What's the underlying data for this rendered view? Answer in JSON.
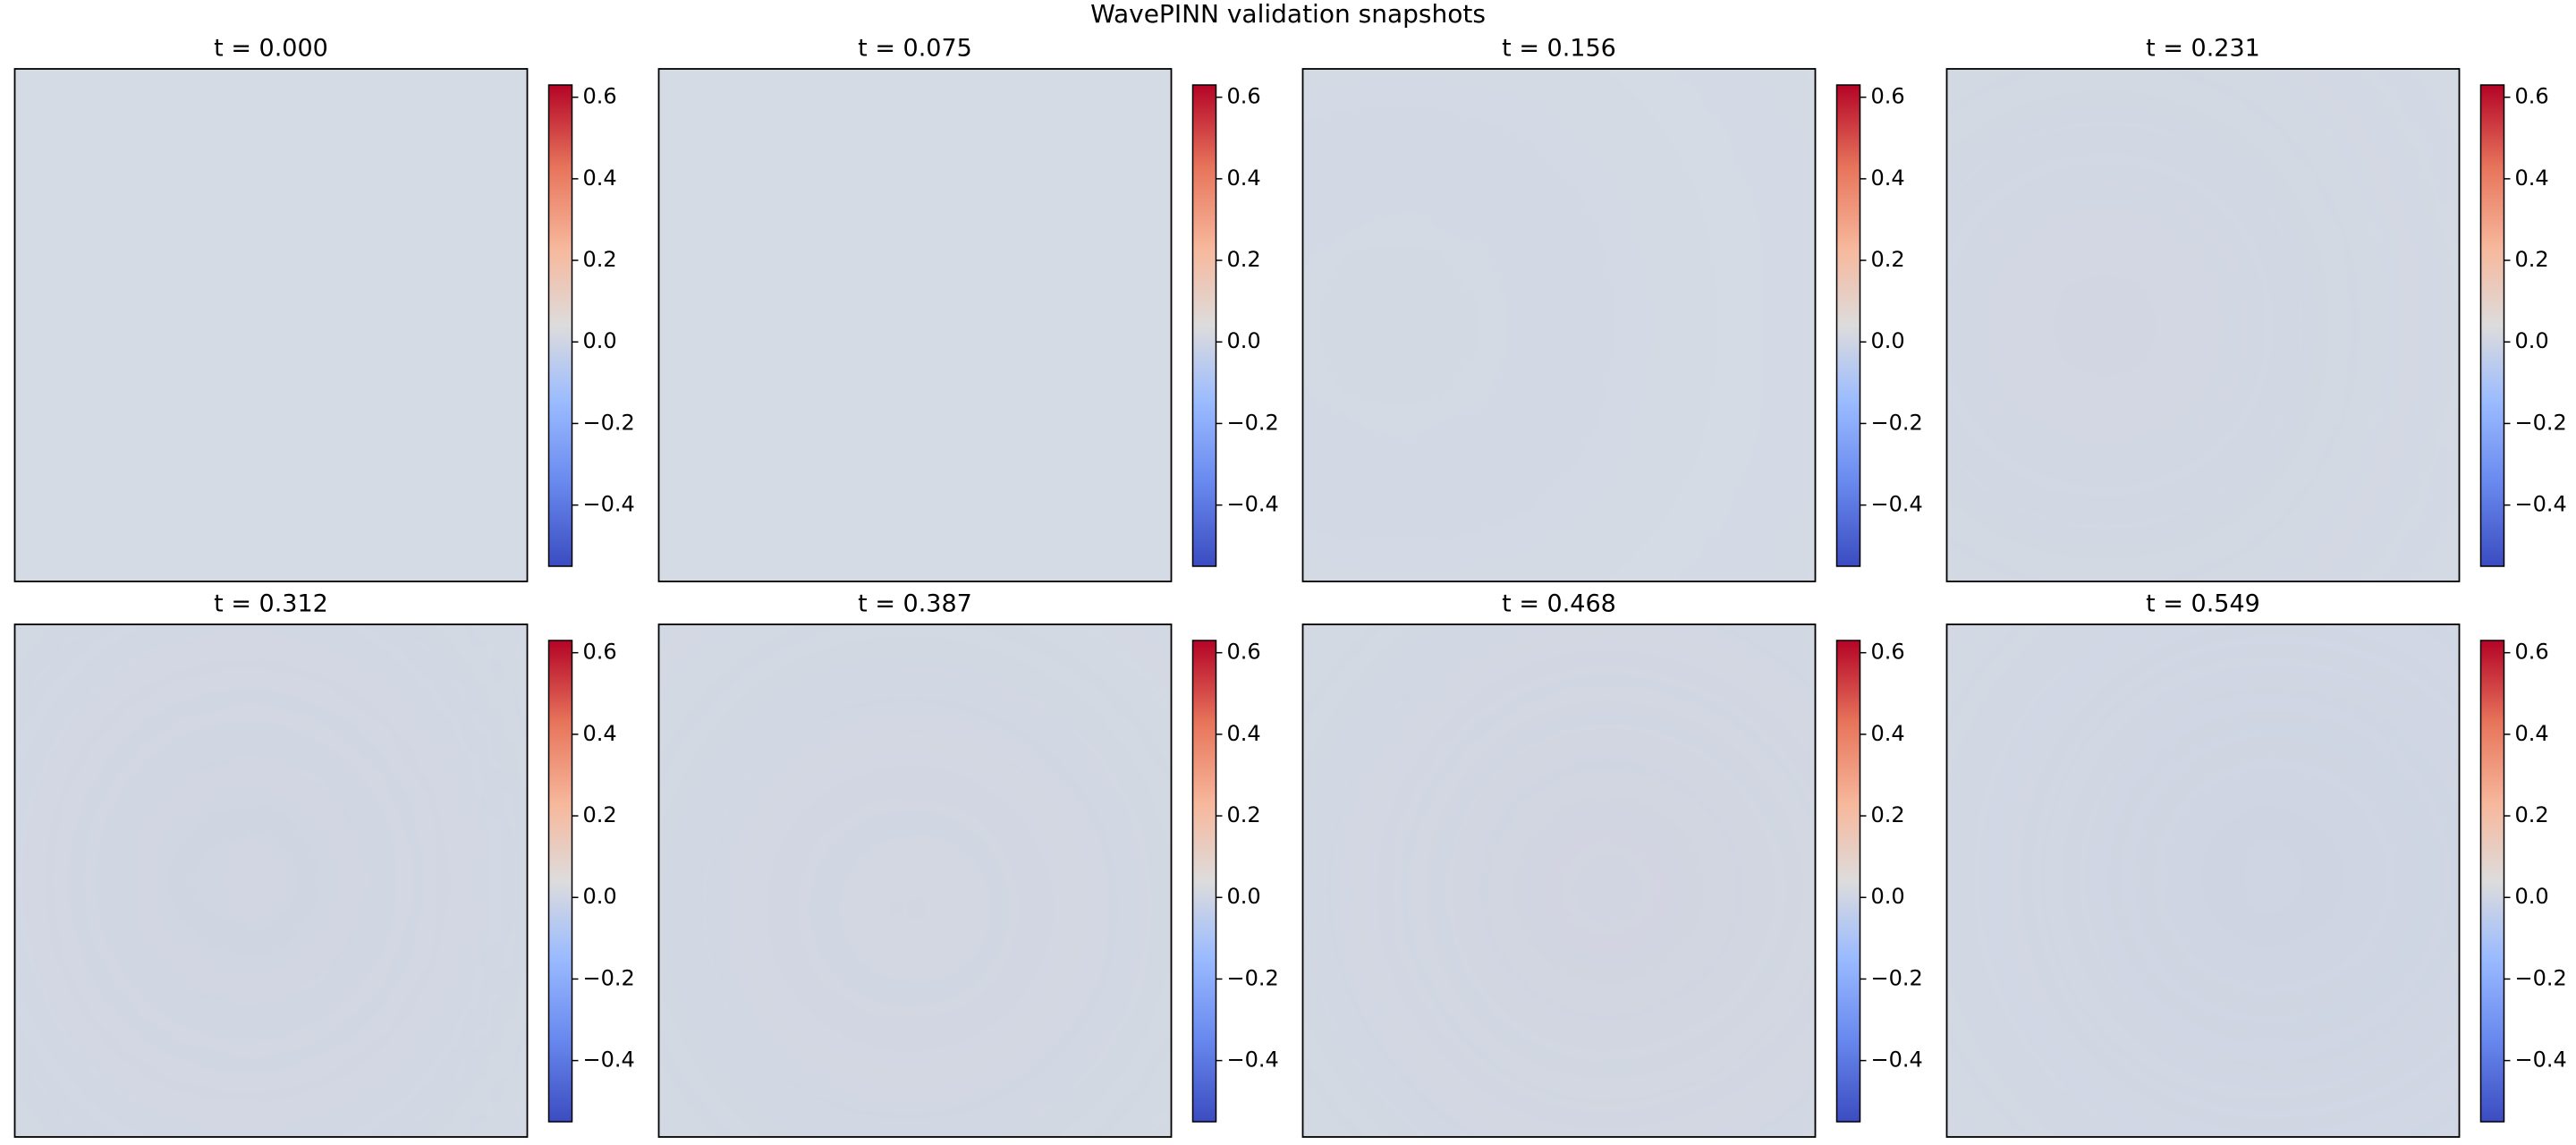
{
  "title": "WavePINN validation snapshots",
  "chart_data": [
    {
      "type": "heatmap",
      "title": "t = 0.000",
      "clim": [
        -0.55,
        0.63
      ],
      "cticks": [
        {
          "value": -0.4,
          "label": "−0.4"
        },
        {
          "value": -0.2,
          "label": "−0.2"
        },
        {
          "value": 0,
          "label": "0.0"
        },
        0.2,
        0.4,
        0.6
      ]
    },
    {
      "type": "heatmap",
      "title": "t = 0.075",
      "clim": [
        -0.55,
        0.63
      ],
      "cticks": [
        {
          "value": -0.4,
          "label": "−0.4"
        },
        {
          "value": -0.2,
          "label": "−0.2"
        },
        {
          "value": 0,
          "label": "0.0"
        },
        0.2,
        0.4,
        0.6
      ]
    },
    {
      "type": "heatmap",
      "title": "t = 0.156",
      "clim": [
        -0.55,
        0.63
      ],
      "cticks": [
        {
          "value": -0.4,
          "label": "−0.4"
        },
        {
          "value": -0.2,
          "label": "−0.2"
        },
        {
          "value": 0,
          "label": "0.0"
        },
        0.2,
        0.4,
        0.6
      ]
    },
    {
      "type": "heatmap",
      "title": "t = 0.231",
      "clim": [
        -0.55,
        0.63
      ],
      "cticks": [
        {
          "value": -0.4,
          "label": "−0.4"
        },
        {
          "value": -0.2,
          "label": "−0.2"
        },
        {
          "value": 0,
          "label": "0.0"
        },
        0.2,
        0.4,
        0.6
      ]
    },
    {
      "type": "heatmap",
      "title": "t = 0.312",
      "clim": [
        -0.55,
        0.63
      ],
      "cticks": [
        {
          "value": -0.4,
          "label": "−0.4"
        },
        {
          "value": -0.2,
          "label": "−0.2"
        },
        {
          "value": 0,
          "label": "0.0"
        },
        0.2,
        0.4,
        0.6
      ]
    },
    {
      "type": "heatmap",
      "title": "t = 0.387",
      "clim": [
        -0.55,
        0.63
      ],
      "cticks": [
        {
          "value": -0.4,
          "label": "−0.4"
        },
        {
          "value": -0.2,
          "label": "−0.2"
        },
        {
          "value": 0,
          "label": "0.0"
        },
        0.2,
        0.4,
        0.6
      ]
    },
    {
      "type": "heatmap",
      "title": "t = 0.468",
      "clim": [
        -0.55,
        0.63
      ],
      "cticks": [
        {
          "value": -0.4,
          "label": "−0.4"
        },
        {
          "value": -0.2,
          "label": "−0.2"
        },
        {
          "value": 0,
          "label": "0.0"
        },
        0.2,
        0.4,
        0.6
      ]
    },
    {
      "type": "heatmap",
      "title": "t = 0.549",
      "clim": [
        -0.55,
        0.63
      ],
      "cticks": [
        {
          "value": -0.4,
          "label": "−0.4"
        },
        {
          "value": -0.2,
          "label": "−0.2"
        },
        {
          "value": 0,
          "label": "0.0"
        },
        0.2,
        0.4,
        0.6
      ]
    }
  ]
}
